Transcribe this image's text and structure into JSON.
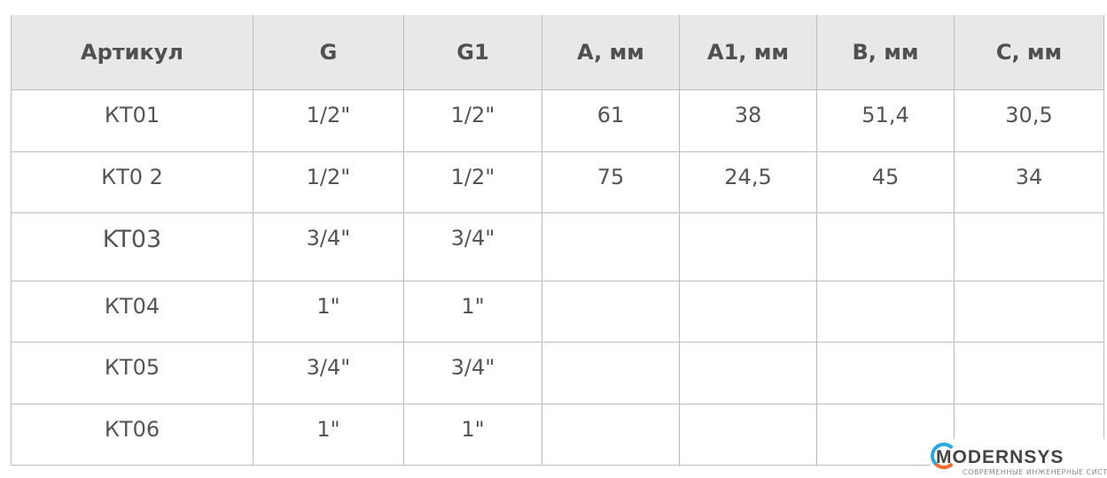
{
  "table": {
    "headers": [
      "Артикул",
      "G",
      "G1",
      "A, мм",
      "A1, мм",
      "B, мм",
      "C, мм"
    ],
    "rows": [
      [
        "КТ01",
        "1/2\"",
        "1/2\"",
        "61",
        "38",
        "51,4",
        "30,5"
      ],
      [
        "КТ0 2",
        "1/2\"",
        "1/2\"",
        "75",
        "24,5",
        "45",
        "34"
      ],
      [
        "KT03",
        "3/4\"",
        "3/4\"",
        "",
        "",
        "",
        ""
      ],
      [
        "КТ04",
        "1\"",
        "1\"",
        "",
        "",
        "",
        ""
      ],
      [
        "КТ05",
        "3/4\"",
        "3/4\"",
        "",
        "",
        "",
        ""
      ],
      [
        "КТ06",
        "1\"",
        "1\"",
        "",
        "",
        "",
        ""
      ]
    ]
  },
  "logo": {
    "text": "MODERNSYS",
    "tagline": "СОВРЕМЕННЫЕ ИНЖЕНЕРНЫЕ СИСТЕМЫ",
    "colors": {
      "blue": "#2aa8e0",
      "orange": "#ef6b2e",
      "text": "#444444"
    }
  }
}
